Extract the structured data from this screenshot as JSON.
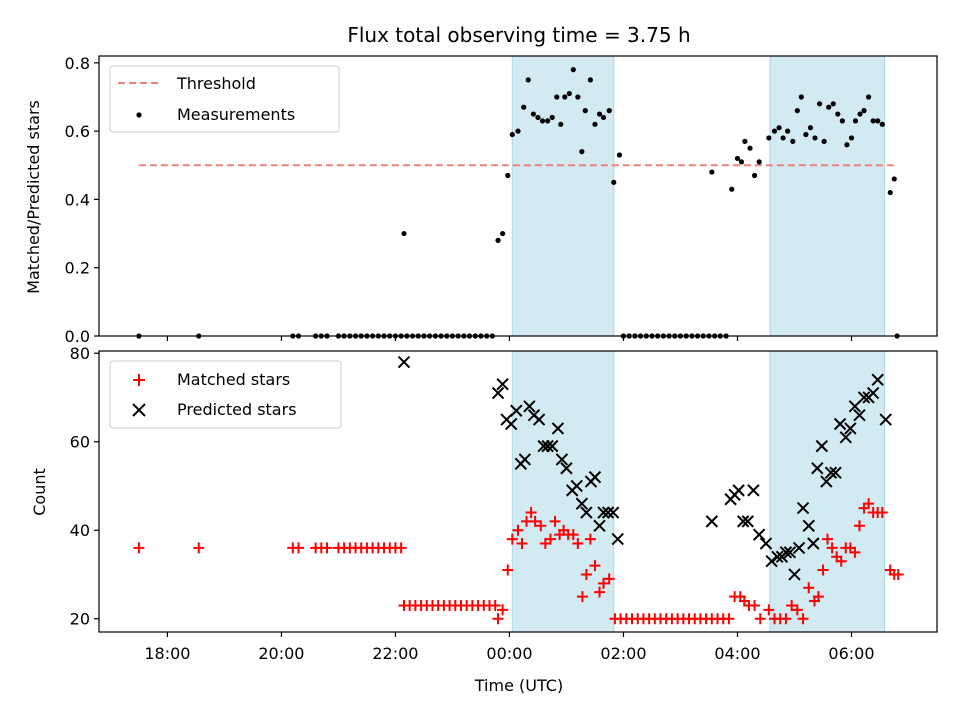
{
  "chart_data": {
    "title": "Flux total observing time = 3.75 h",
    "xlabel": "Time (UTC)",
    "type": "scatter",
    "x_unit": "hours relative to 00:00 UTC (negative = previous evening)",
    "x_ticks": [
      {
        "value": -6,
        "label": "18:00"
      },
      {
        "value": -4,
        "label": "20:00"
      },
      {
        "value": -2,
        "label": "22:00"
      },
      {
        "value": 0,
        "label": "00:00"
      },
      {
        "value": 2,
        "label": "02:00"
      },
      {
        "value": 4,
        "label": "04:00"
      },
      {
        "value": 6,
        "label": "06:00"
      }
    ],
    "x_range": [
      -7.2,
      7.5
    ],
    "shaded_intervals": [
      [
        0.05,
        1.83
      ],
      [
        4.57,
        6.58
      ]
    ],
    "shade_color": "#add8e6",
    "top": {
      "ylabel": "Matched/Predicted stars",
      "ylim": [
        0,
        0.82
      ],
      "y_ticks": [
        {
          "value": 0.0,
          "label": "0.0"
        },
        {
          "value": 0.2,
          "label": "0.2"
        },
        {
          "value": 0.4,
          "label": "0.4"
        },
        {
          "value": 0.6,
          "label": "0.6"
        },
        {
          "value": 0.8,
          "label": "0.8"
        }
      ],
      "threshold": {
        "name": "Threshold",
        "value": 0.5,
        "x_range": [
          -6.5,
          6.75
        ],
        "color": "#f08080"
      },
      "measurements": {
        "name": "Measurements",
        "color": "#000000",
        "points": [
          [
            -6.5,
            0.0
          ],
          [
            -5.45,
            0.0
          ],
          [
            -3.8,
            0.0
          ],
          [
            -3.7,
            0.0
          ],
          [
            -3.4,
            0.0
          ],
          [
            -3.3,
            0.0
          ],
          [
            -3.2,
            0.0
          ],
          [
            -3.0,
            0.0
          ],
          [
            -2.9,
            0.0
          ],
          [
            -2.8,
            0.0
          ],
          [
            -2.7,
            0.0
          ],
          [
            -2.6,
            0.0
          ],
          [
            -2.5,
            0.0
          ],
          [
            -2.4,
            0.0
          ],
          [
            -2.3,
            0.0
          ],
          [
            -2.2,
            0.0
          ],
          [
            -2.1,
            0.0
          ],
          [
            -2.0,
            0.0
          ],
          [
            -1.9,
            0.0
          ],
          [
            -1.8,
            0.0
          ],
          [
            -1.85,
            0.3
          ],
          [
            -1.7,
            0.0
          ],
          [
            -1.6,
            0.0
          ],
          [
            -1.5,
            0.0
          ],
          [
            -1.4,
            0.0
          ],
          [
            -1.3,
            0.0
          ],
          [
            -1.2,
            0.0
          ],
          [
            -1.1,
            0.0
          ],
          [
            -1.0,
            0.0
          ],
          [
            -0.9,
            0.0
          ],
          [
            -0.8,
            0.0
          ],
          [
            -0.7,
            0.0
          ],
          [
            -0.6,
            0.0
          ],
          [
            -0.5,
            0.0
          ],
          [
            -0.4,
            0.0
          ],
          [
            -0.3,
            0.0
          ],
          [
            -0.2,
            0.28
          ],
          [
            -0.12,
            0.3
          ],
          [
            -0.03,
            0.47
          ],
          [
            0.05,
            0.59
          ],
          [
            0.15,
            0.6
          ],
          [
            0.25,
            0.67
          ],
          [
            0.33,
            0.75
          ],
          [
            0.42,
            0.65
          ],
          [
            0.5,
            0.64
          ],
          [
            0.58,
            0.63
          ],
          [
            0.67,
            0.63
          ],
          [
            0.75,
            0.64
          ],
          [
            0.83,
            0.7
          ],
          [
            0.9,
            0.62
          ],
          [
            0.97,
            0.7
          ],
          [
            1.05,
            0.71
          ],
          [
            1.12,
            0.78
          ],
          [
            1.2,
            0.7
          ],
          [
            1.27,
            0.54
          ],
          [
            1.33,
            0.66
          ],
          [
            1.42,
            0.75
          ],
          [
            1.5,
            0.62
          ],
          [
            1.58,
            0.65
          ],
          [
            1.65,
            0.64
          ],
          [
            1.75,
            0.66
          ],
          [
            1.83,
            0.45
          ],
          [
            1.93,
            0.53
          ],
          [
            2.0,
            0.0
          ],
          [
            2.1,
            0.0
          ],
          [
            2.2,
            0.0
          ],
          [
            2.3,
            0.0
          ],
          [
            2.4,
            0.0
          ],
          [
            2.5,
            0.0
          ],
          [
            2.6,
            0.0
          ],
          [
            2.7,
            0.0
          ],
          [
            2.8,
            0.0
          ],
          [
            2.9,
            0.0
          ],
          [
            3.0,
            0.0
          ],
          [
            3.1,
            0.0
          ],
          [
            3.2,
            0.0
          ],
          [
            3.3,
            0.0
          ],
          [
            3.4,
            0.0
          ],
          [
            3.5,
            0.0
          ],
          [
            3.6,
            0.0
          ],
          [
            3.7,
            0.0
          ],
          [
            3.8,
            0.0
          ],
          [
            3.55,
            0.48
          ],
          [
            3.9,
            0.43
          ],
          [
            4.0,
            0.52
          ],
          [
            4.07,
            0.51
          ],
          [
            4.13,
            0.57
          ],
          [
            4.22,
            0.55
          ],
          [
            4.3,
            0.47
          ],
          [
            4.38,
            0.51
          ],
          [
            4.55,
            0.58
          ],
          [
            4.65,
            0.6
          ],
          [
            4.73,
            0.61
          ],
          [
            4.8,
            0.58
          ],
          [
            4.88,
            0.6
          ],
          [
            4.97,
            0.57
          ],
          [
            5.05,
            0.66
          ],
          [
            5.12,
            0.7
          ],
          [
            5.2,
            0.59
          ],
          [
            5.28,
            0.61
          ],
          [
            5.36,
            0.58
          ],
          [
            5.44,
            0.68
          ],
          [
            5.52,
            0.57
          ],
          [
            5.6,
            0.67
          ],
          [
            5.68,
            0.68
          ],
          [
            5.76,
            0.65
          ],
          [
            5.84,
            0.63
          ],
          [
            5.92,
            0.56
          ],
          [
            6.0,
            0.58
          ],
          [
            6.07,
            0.63
          ],
          [
            6.15,
            0.65
          ],
          [
            6.22,
            0.66
          ],
          [
            6.3,
            0.7
          ],
          [
            6.38,
            0.63
          ],
          [
            6.46,
            0.63
          ],
          [
            6.54,
            0.62
          ],
          [
            6.68,
            0.42
          ],
          [
            6.75,
            0.46
          ],
          [
            6.8,
            0.0
          ]
        ]
      }
    },
    "bottom": {
      "ylabel": "Count",
      "ylim": [
        17,
        80.5
      ],
      "y_ticks": [
        {
          "value": 20,
          "label": "20"
        },
        {
          "value": 40,
          "label": "40"
        },
        {
          "value": 60,
          "label": "60"
        },
        {
          "value": 80,
          "label": "80"
        }
      ],
      "matched": {
        "name": "Matched stars",
        "color": "#ff0000",
        "points": [
          [
            -6.5,
            36
          ],
          [
            -5.45,
            36
          ],
          [
            -3.8,
            36
          ],
          [
            -3.7,
            36
          ],
          [
            -3.4,
            36
          ],
          [
            -3.3,
            36
          ],
          [
            -3.2,
            36
          ],
          [
            -3.0,
            36
          ],
          [
            -2.9,
            36
          ],
          [
            -2.8,
            36
          ],
          [
            -2.7,
            36
          ],
          [
            -2.6,
            36
          ],
          [
            -2.5,
            36
          ],
          [
            -2.4,
            36
          ],
          [
            -2.3,
            36
          ],
          [
            -2.2,
            36
          ],
          [
            -2.1,
            36
          ],
          [
            -2.0,
            36
          ],
          [
            -1.9,
            36
          ],
          [
            -1.85,
            23
          ],
          [
            -1.75,
            23
          ],
          [
            -1.65,
            23
          ],
          [
            -1.55,
            23
          ],
          [
            -1.45,
            23
          ],
          [
            -1.35,
            23
          ],
          [
            -1.25,
            23
          ],
          [
            -1.15,
            23
          ],
          [
            -1.05,
            23
          ],
          [
            -0.95,
            23
          ],
          [
            -0.85,
            23
          ],
          [
            -0.75,
            23
          ],
          [
            -0.65,
            23
          ],
          [
            -0.55,
            23
          ],
          [
            -0.45,
            23
          ],
          [
            -0.35,
            23
          ],
          [
            -0.25,
            23
          ],
          [
            -0.2,
            20
          ],
          [
            -0.12,
            22
          ],
          [
            -0.03,
            31
          ],
          [
            0.05,
            38
          ],
          [
            0.15,
            40
          ],
          [
            0.22,
            37
          ],
          [
            0.3,
            42
          ],
          [
            0.38,
            44
          ],
          [
            0.45,
            42
          ],
          [
            0.55,
            41
          ],
          [
            0.63,
            37
          ],
          [
            0.72,
            38
          ],
          [
            0.8,
            42
          ],
          [
            0.88,
            39
          ],
          [
            0.95,
            40
          ],
          [
            1.03,
            39
          ],
          [
            1.12,
            39
          ],
          [
            1.2,
            37
          ],
          [
            1.28,
            25
          ],
          [
            1.35,
            30
          ],
          [
            1.42,
            38
          ],
          [
            1.5,
            32
          ],
          [
            1.58,
            26
          ],
          [
            1.65,
            28
          ],
          [
            1.75,
            29
          ],
          [
            1.85,
            20
          ],
          [
            1.95,
            20
          ],
          [
            2.05,
            20
          ],
          [
            2.15,
            20
          ],
          [
            2.25,
            20
          ],
          [
            2.35,
            20
          ],
          [
            2.45,
            20
          ],
          [
            2.55,
            20
          ],
          [
            2.65,
            20
          ],
          [
            2.75,
            20
          ],
          [
            2.85,
            20
          ],
          [
            2.95,
            20
          ],
          [
            3.05,
            20
          ],
          [
            3.15,
            20
          ],
          [
            3.25,
            20
          ],
          [
            3.35,
            20
          ],
          [
            3.45,
            20
          ],
          [
            3.55,
            20
          ],
          [
            3.65,
            20
          ],
          [
            3.75,
            20
          ],
          [
            3.85,
            20
          ],
          [
            3.95,
            25
          ],
          [
            4.05,
            25
          ],
          [
            4.12,
            24
          ],
          [
            4.2,
            23
          ],
          [
            4.3,
            23
          ],
          [
            4.4,
            20
          ],
          [
            4.55,
            22
          ],
          [
            4.65,
            20
          ],
          [
            4.75,
            20
          ],
          [
            4.85,
            20
          ],
          [
            4.95,
            23
          ],
          [
            5.05,
            22
          ],
          [
            5.15,
            20
          ],
          [
            5.25,
            27
          ],
          [
            5.35,
            24
          ],
          [
            5.42,
            25
          ],
          [
            5.5,
            31
          ],
          [
            5.58,
            38
          ],
          [
            5.66,
            36
          ],
          [
            5.74,
            34
          ],
          [
            5.82,
            33
          ],
          [
            5.9,
            36
          ],
          [
            5.98,
            36
          ],
          [
            6.06,
            35
          ],
          [
            6.14,
            41
          ],
          [
            6.22,
            45
          ],
          [
            6.3,
            46
          ],
          [
            6.38,
            44
          ],
          [
            6.46,
            44
          ],
          [
            6.54,
            44
          ],
          [
            6.68,
            31
          ],
          [
            6.75,
            30
          ],
          [
            6.82,
            30
          ]
        ]
      },
      "predicted": {
        "name": "Predicted stars",
        "color": "#000000",
        "points": [
          [
            -1.85,
            78
          ],
          [
            -0.2,
            71
          ],
          [
            -0.12,
            73
          ],
          [
            -0.05,
            65
          ],
          [
            0.03,
            64
          ],
          [
            0.12,
            67
          ],
          [
            0.2,
            55
          ],
          [
            0.27,
            56
          ],
          [
            0.35,
            68
          ],
          [
            0.43,
            66
          ],
          [
            0.52,
            65
          ],
          [
            0.6,
            59
          ],
          [
            0.67,
            59
          ],
          [
            0.75,
            59
          ],
          [
            0.85,
            63
          ],
          [
            0.92,
            56
          ],
          [
            1.0,
            54
          ],
          [
            1.1,
            49
          ],
          [
            1.18,
            50
          ],
          [
            1.27,
            46
          ],
          [
            1.35,
            44
          ],
          [
            1.43,
            51
          ],
          [
            1.5,
            52
          ],
          [
            1.58,
            41
          ],
          [
            1.65,
            44
          ],
          [
            1.73,
            44
          ],
          [
            1.82,
            44
          ],
          [
            1.9,
            38
          ],
          [
            3.55,
            42
          ],
          [
            3.88,
            47
          ],
          [
            3.95,
            48
          ],
          [
            4.02,
            49
          ],
          [
            4.1,
            42
          ],
          [
            4.18,
            42
          ],
          [
            4.28,
            49
          ],
          [
            4.38,
            39
          ],
          [
            4.5,
            37
          ],
          [
            4.6,
            33
          ],
          [
            4.7,
            34
          ],
          [
            4.78,
            34
          ],
          [
            4.85,
            35
          ],
          [
            4.92,
            35
          ],
          [
            5.0,
            30
          ],
          [
            5.08,
            36
          ],
          [
            5.15,
            45
          ],
          [
            5.25,
            41
          ],
          [
            5.33,
            37
          ],
          [
            5.4,
            54
          ],
          [
            5.48,
            59
          ],
          [
            5.56,
            51
          ],
          [
            5.64,
            53
          ],
          [
            5.72,
            53
          ],
          [
            5.8,
            64
          ],
          [
            5.9,
            61
          ],
          [
            5.98,
            63
          ],
          [
            6.06,
            68
          ],
          [
            6.14,
            66
          ],
          [
            6.22,
            70
          ],
          [
            6.3,
            70
          ],
          [
            6.38,
            71
          ],
          [
            6.46,
            74
          ],
          [
            6.6,
            65
          ]
        ]
      }
    }
  }
}
